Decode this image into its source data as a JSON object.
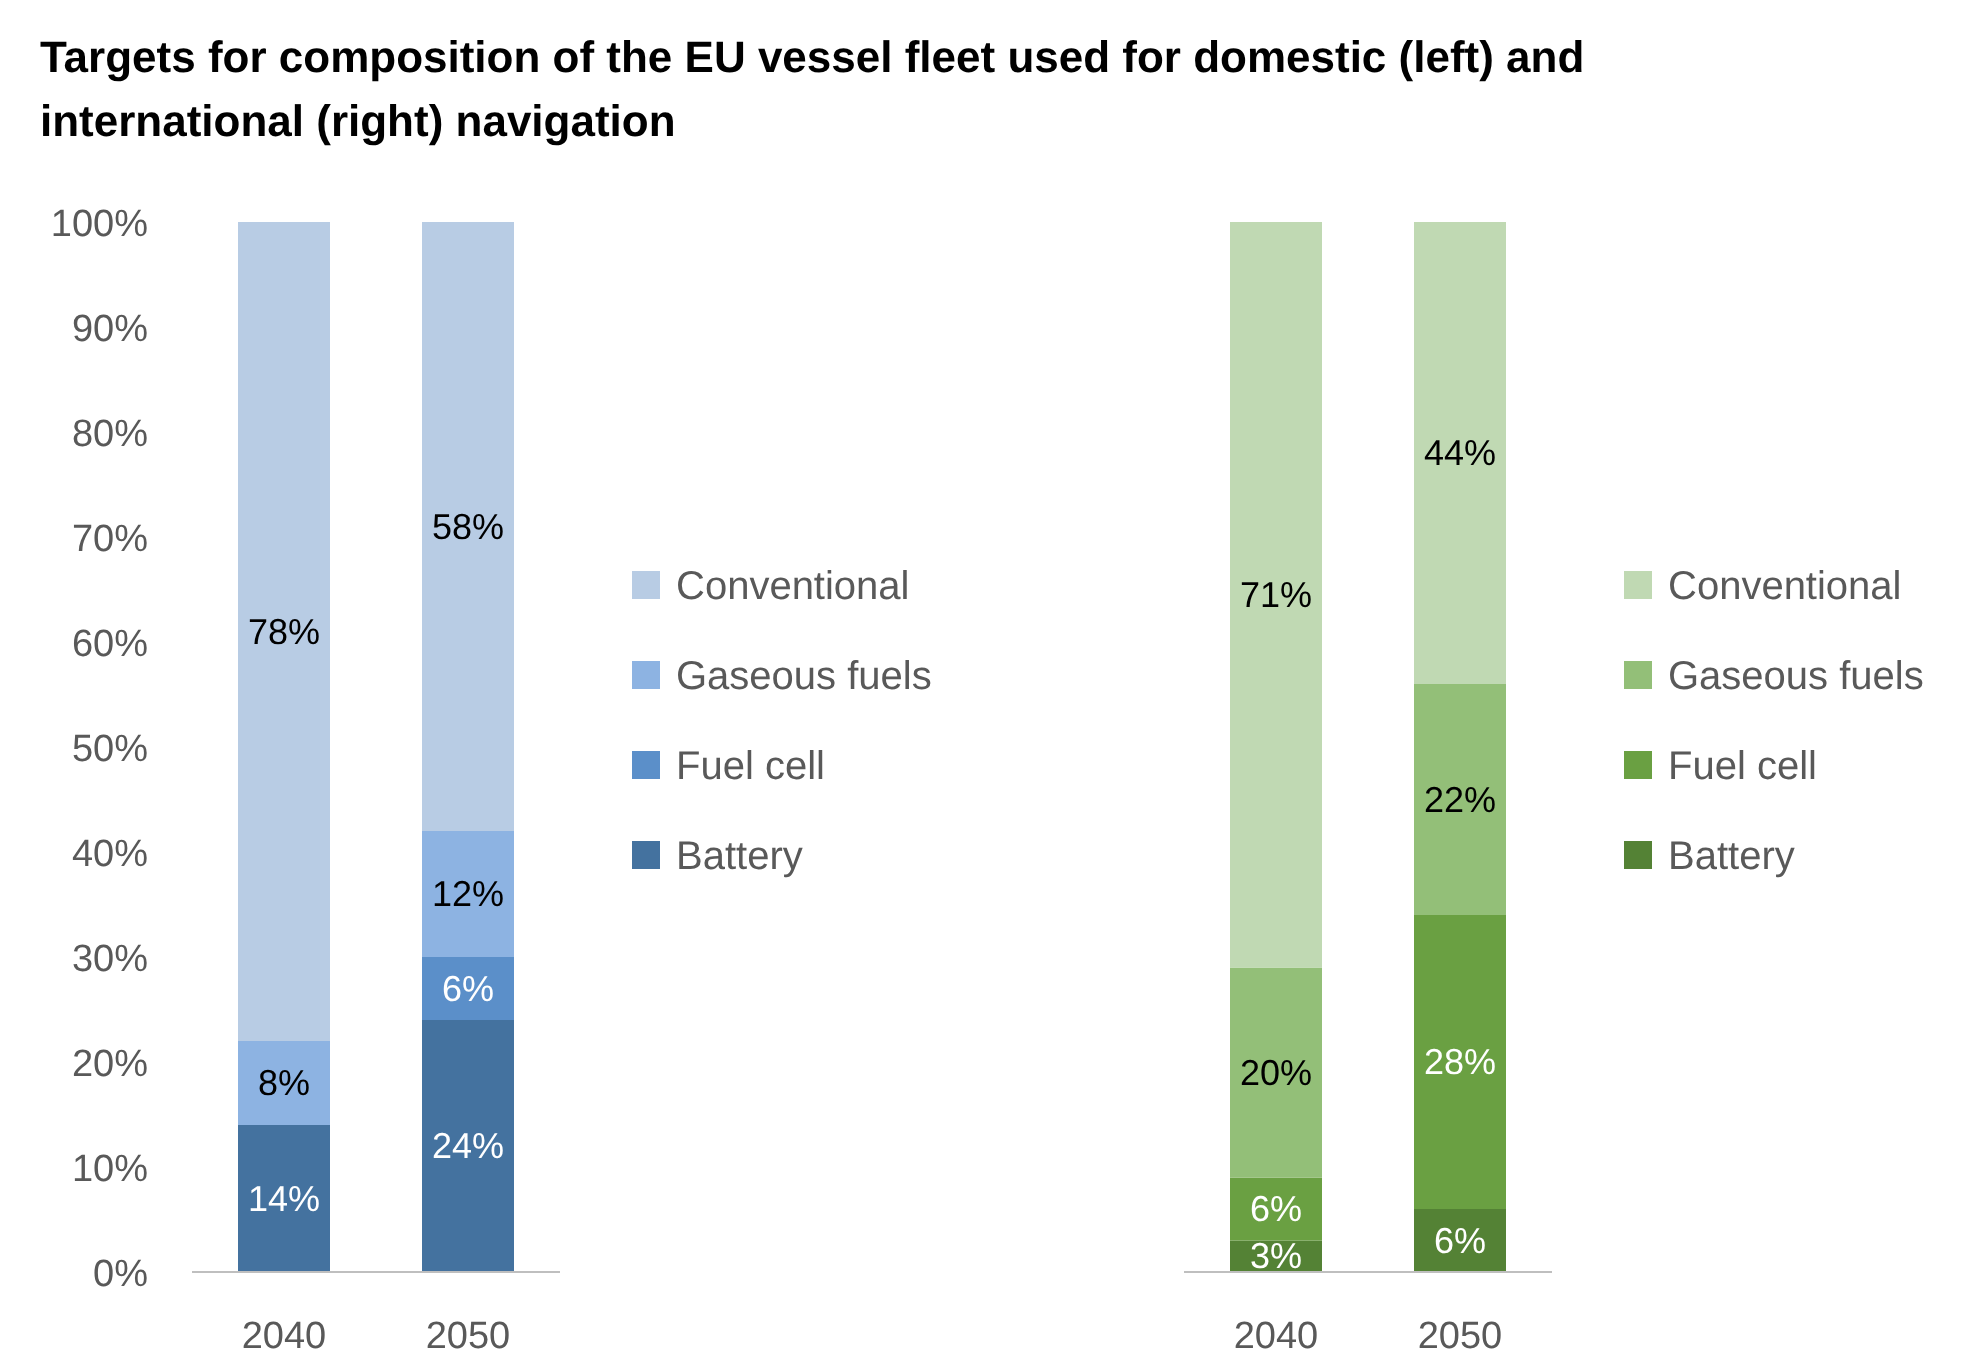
{
  "chart_data": [
    {
      "type": "bar",
      "title": "Targets for composition of the EU vessel fleet used for domestic (left) and international (right) navigation",
      "categories": [
        "2040",
        "2050"
      ],
      "stacked": true,
      "legend": "right",
      "ylim": [
        0,
        100
      ],
      "yticks": [
        {
          "value": 0,
          "label": "0%"
        },
        {
          "value": 10,
          "label": "10%"
        },
        {
          "value": 20,
          "label": "20%"
        },
        {
          "value": 30,
          "label": "30%"
        },
        {
          "value": 40,
          "label": "40%"
        },
        {
          "value": 50,
          "label": "50%"
        },
        {
          "value": 60,
          "label": "60%"
        },
        {
          "value": 70,
          "label": "70%"
        },
        {
          "value": 80,
          "label": "80%"
        },
        {
          "value": 90,
          "label": "90%"
        },
        {
          "value": 100,
          "label": "100%"
        }
      ],
      "series": [
        {
          "name": "Battery",
          "color": "#44729f",
          "values": [
            14,
            24
          ],
          "value_labels": [
            "14%",
            "24%"
          ]
        },
        {
          "name": "Fuel cell",
          "color": "#5b8fc9",
          "values": [
            0,
            6
          ],
          "value_labels": [
            null,
            "6%"
          ]
        },
        {
          "name": "Gaseous fuels",
          "color": "#8db3e2",
          "values": [
            8,
            12
          ],
          "value_labels": [
            "8%",
            "12%"
          ]
        },
        {
          "name": "Conventional",
          "color": "#b8cce4",
          "values": [
            78,
            58
          ],
          "value_labels": [
            "78%",
            "58%"
          ]
        }
      ]
    },
    {
      "type": "bar",
      "categories": [
        "2040",
        "2050"
      ],
      "stacked": true,
      "legend": "right",
      "ylim": [
        0,
        100
      ],
      "tick_labels": "x",
      "series": [
        {
          "name": "Battery",
          "color": "#548235",
          "values": [
            3,
            6
          ],
          "value_labels": [
            "3%",
            "6%"
          ]
        },
        {
          "name": "Fuel cell",
          "color": "#6aa042",
          "values": [
            6,
            28
          ],
          "value_labels": [
            "6%",
            "28%"
          ]
        },
        {
          "name": "Gaseous fuels",
          "color": "#93bf78",
          "values": [
            20,
            22
          ],
          "value_labels": [
            "20%",
            "22%"
          ]
        },
        {
          "name": "Conventional",
          "color": "#c0d9b3",
          "values": [
            71,
            44
          ],
          "value_labels": [
            "71%",
            "44%"
          ]
        }
      ]
    }
  ]
}
